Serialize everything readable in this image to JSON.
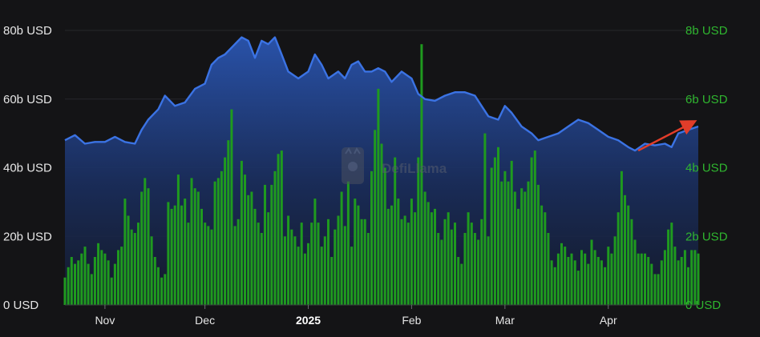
{
  "colors": {
    "background": "#141416",
    "tvl_line": "#3b73e4",
    "tvl_fill": "#1e3a78",
    "volume_bars": "#1f9a1f",
    "right_axis": "#2fb52f",
    "trend_arrow": "#e23d2a",
    "gridline": "#26272b"
  },
  "watermark": {
    "text": "DefiLlama",
    "icon": "llama-logo-icon"
  },
  "chart_data": {
    "type": "line+bar",
    "x_axis": {
      "type": "date",
      "range": [
        "2024-10-20",
        "2025-04-28"
      ],
      "tick_labels": [
        {
          "date": "2024-11-01",
          "label": "Nov",
          "bold": false
        },
        {
          "date": "2024-12-01",
          "label": "Dec",
          "bold": false
        },
        {
          "date": "2025-01-01",
          "label": "2025",
          "bold": true
        },
        {
          "date": "2025-02-01",
          "label": "Feb",
          "bold": false
        },
        {
          "date": "2025-03-01",
          "label": "Mar",
          "bold": false
        },
        {
          "date": "2025-04-01",
          "label": "Apr",
          "bold": false
        }
      ]
    },
    "y_left": {
      "unit": "USD",
      "range": [
        0,
        80000000000
      ],
      "tick_labels": [
        "0 USD",
        "20b USD",
        "40b USD",
        "60b USD",
        "80b USD"
      ]
    },
    "y_right": {
      "unit": "USD",
      "range": [
        0,
        8000000000
      ],
      "tick_labels": [
        "0 USD",
        "2b USD",
        "4b USD",
        "6b USD",
        "8b USD"
      ]
    },
    "grid": "horizontal",
    "legend": "none",
    "series": [
      {
        "type": "area",
        "axis": "left",
        "color": "#3b73e4",
        "points": [
          [
            "2024-10-20",
            48
          ],
          [
            "2024-10-23",
            49.5
          ],
          [
            "2024-10-26",
            47
          ],
          [
            "2024-10-29",
            47.5
          ],
          [
            "2024-11-01",
            47.5
          ],
          [
            "2024-11-04",
            49
          ],
          [
            "2024-11-07",
            47.5
          ],
          [
            "2024-11-10",
            47
          ],
          [
            "2024-11-12",
            51
          ],
          [
            "2024-11-14",
            54
          ],
          [
            "2024-11-17",
            57
          ],
          [
            "2024-11-19",
            61
          ],
          [
            "2024-11-22",
            58
          ],
          [
            "2024-11-25",
            59
          ],
          [
            "2024-11-28",
            63
          ],
          [
            "2024-12-01",
            64.5
          ],
          [
            "2024-12-03",
            70
          ],
          [
            "2024-12-05",
            72
          ],
          [
            "2024-12-07",
            73
          ],
          [
            "2024-12-09",
            75
          ],
          [
            "2024-12-11",
            77
          ],
          [
            "2024-12-12",
            78
          ],
          [
            "2024-12-14",
            77
          ],
          [
            "2024-12-16",
            72
          ],
          [
            "2024-12-18",
            77
          ],
          [
            "2024-12-20",
            76
          ],
          [
            "2024-12-22",
            78
          ],
          [
            "2024-12-24",
            73
          ],
          [
            "2024-12-26",
            68
          ],
          [
            "2024-12-29",
            66
          ],
          [
            "2025-01-01",
            68
          ],
          [
            "2025-01-03",
            73
          ],
          [
            "2025-01-05",
            70
          ],
          [
            "2025-01-07",
            66
          ],
          [
            "2025-01-10",
            68
          ],
          [
            "2025-01-12",
            66
          ],
          [
            "2025-01-14",
            70
          ],
          [
            "2025-01-16",
            71
          ],
          [
            "2025-01-18",
            68
          ],
          [
            "2025-01-20",
            68
          ],
          [
            "2025-01-22",
            69
          ],
          [
            "2025-01-24",
            68
          ],
          [
            "2025-01-26",
            65
          ],
          [
            "2025-01-29",
            68
          ],
          [
            "2025-02-01",
            66
          ],
          [
            "2025-02-03",
            61.5
          ],
          [
            "2025-02-05",
            60
          ],
          [
            "2025-02-08",
            59.5
          ],
          [
            "2025-02-11",
            61
          ],
          [
            "2025-02-14",
            62
          ],
          [
            "2025-02-17",
            62
          ],
          [
            "2025-02-20",
            61
          ],
          [
            "2025-02-22",
            58
          ],
          [
            "2025-02-24",
            55
          ],
          [
            "2025-02-27",
            54
          ],
          [
            "2025-03-01",
            58
          ],
          [
            "2025-03-03",
            56
          ],
          [
            "2025-03-06",
            52
          ],
          [
            "2025-03-09",
            50
          ],
          [
            "2025-03-11",
            48
          ],
          [
            "2025-03-14",
            49
          ],
          [
            "2025-03-17",
            50
          ],
          [
            "2025-03-20",
            52
          ],
          [
            "2025-03-23",
            54
          ],
          [
            "2025-03-26",
            53
          ],
          [
            "2025-03-29",
            51
          ],
          [
            "2025-04-01",
            49
          ],
          [
            "2025-04-04",
            48
          ],
          [
            "2025-04-07",
            46
          ],
          [
            "2025-04-09",
            45
          ],
          [
            "2025-04-12",
            47
          ],
          [
            "2025-04-15",
            46.5
          ],
          [
            "2025-04-18",
            47
          ],
          [
            "2025-04-20",
            46
          ],
          [
            "2025-04-22",
            50
          ],
          [
            "2025-04-25",
            51
          ],
          [
            "2025-04-28",
            52
          ]
        ]
      },
      {
        "type": "bar",
        "axis": "right",
        "color": "#1f9a1f",
        "points": [
          [
            "2024-10-20",
            0.8
          ],
          [
            "2024-10-21",
            1.1
          ],
          [
            "2024-10-22",
            1.4
          ],
          [
            "2024-10-23",
            1.2
          ],
          [
            "2024-10-24",
            1.3
          ],
          [
            "2024-10-25",
            1.5
          ],
          [
            "2024-10-26",
            1.7
          ],
          [
            "2024-10-27",
            1.2
          ],
          [
            "2024-10-28",
            0.9
          ],
          [
            "2024-10-29",
            1.4
          ],
          [
            "2024-10-30",
            1.8
          ],
          [
            "2024-10-31",
            1.6
          ],
          [
            "2024-11-01",
            1.5
          ],
          [
            "2024-11-02",
            1.3
          ],
          [
            "2024-11-03",
            0.8
          ],
          [
            "2024-11-04",
            1.2
          ],
          [
            "2024-11-05",
            1.6
          ],
          [
            "2024-11-06",
            1.7
          ],
          [
            "2024-11-07",
            3.1
          ],
          [
            "2024-11-08",
            2.6
          ],
          [
            "2024-11-09",
            2.2
          ],
          [
            "2024-11-10",
            2.1
          ],
          [
            "2024-11-11",
            2.4
          ],
          [
            "2024-11-12",
            3.3
          ],
          [
            "2024-11-13",
            3.7
          ],
          [
            "2024-11-14",
            3.4
          ],
          [
            "2024-11-15",
            2.0
          ],
          [
            "2024-11-16",
            1.4
          ],
          [
            "2024-11-17",
            1.1
          ],
          [
            "2024-11-18",
            0.8
          ],
          [
            "2024-11-19",
            0.9
          ],
          [
            "2024-11-20",
            3.0
          ],
          [
            "2024-11-21",
            2.8
          ],
          [
            "2024-11-22",
            2.9
          ],
          [
            "2024-11-23",
            3.8
          ],
          [
            "2024-11-24",
            2.9
          ],
          [
            "2024-11-25",
            3.1
          ],
          [
            "2024-11-26",
            2.4
          ],
          [
            "2024-11-27",
            3.7
          ],
          [
            "2024-11-28",
            3.4
          ],
          [
            "2024-11-29",
            3.3
          ],
          [
            "2024-11-30",
            2.8
          ],
          [
            "2024-12-01",
            2.4
          ],
          [
            "2024-12-02",
            2.3
          ],
          [
            "2024-12-03",
            2.2
          ],
          [
            "2024-12-04",
            3.6
          ],
          [
            "2024-12-05",
            3.7
          ],
          [
            "2024-12-06",
            3.9
          ],
          [
            "2024-12-07",
            4.3
          ],
          [
            "2024-12-08",
            4.8
          ],
          [
            "2024-12-09",
            5.7
          ],
          [
            "2024-12-10",
            2.3
          ],
          [
            "2024-12-11",
            2.5
          ],
          [
            "2024-12-12",
            4.2
          ],
          [
            "2024-12-13",
            3.8
          ],
          [
            "2024-12-14",
            3.2
          ],
          [
            "2024-12-15",
            3.3
          ],
          [
            "2024-12-16",
            2.8
          ],
          [
            "2024-12-17",
            2.4
          ],
          [
            "2024-12-18",
            2.1
          ],
          [
            "2024-12-19",
            3.5
          ],
          [
            "2024-12-20",
            2.7
          ],
          [
            "2024-12-21",
            3.5
          ],
          [
            "2024-12-22",
            3.9
          ],
          [
            "2024-12-23",
            4.4
          ],
          [
            "2024-12-24",
            4.5
          ],
          [
            "2024-12-25",
            2.0
          ],
          [
            "2024-12-26",
            2.6
          ],
          [
            "2024-12-27",
            2.2
          ],
          [
            "2024-12-28",
            2.0
          ],
          [
            "2024-12-29",
            1.7
          ],
          [
            "2024-12-30",
            2.4
          ],
          [
            "2024-12-31",
            1.5
          ],
          [
            "2025-01-01",
            1.8
          ],
          [
            "2025-01-02",
            2.4
          ],
          [
            "2025-01-03",
            3.1
          ],
          [
            "2025-01-04",
            2.4
          ],
          [
            "2025-01-05",
            1.7
          ],
          [
            "2025-01-06",
            2.0
          ],
          [
            "2025-01-07",
            2.5
          ],
          [
            "2025-01-08",
            1.4
          ],
          [
            "2025-01-09",
            2.2
          ],
          [
            "2025-01-10",
            2.6
          ],
          [
            "2025-01-11",
            3.3
          ],
          [
            "2025-01-12",
            2.3
          ],
          [
            "2025-01-13",
            3.6
          ],
          [
            "2025-01-14",
            1.7
          ],
          [
            "2025-01-15",
            3.1
          ],
          [
            "2025-01-16",
            2.9
          ],
          [
            "2025-01-17",
            2.5
          ],
          [
            "2025-01-18",
            2.5
          ],
          [
            "2025-01-19",
            2.1
          ],
          [
            "2025-01-20",
            3.9
          ],
          [
            "2025-01-21",
            5.1
          ],
          [
            "2025-01-22",
            6.3
          ],
          [
            "2025-01-23",
            4.7
          ],
          [
            "2025-01-24",
            4.0
          ],
          [
            "2025-01-25",
            2.8
          ],
          [
            "2025-01-26",
            2.9
          ],
          [
            "2025-01-27",
            4.3
          ],
          [
            "2025-01-28",
            3.1
          ],
          [
            "2025-01-29",
            2.5
          ],
          [
            "2025-01-30",
            2.6
          ],
          [
            "2025-01-31",
            2.4
          ],
          [
            "2025-02-01",
            3.1
          ],
          [
            "2025-02-02",
            2.7
          ],
          [
            "2025-02-03",
            4.3
          ],
          [
            "2025-02-04",
            7.6
          ],
          [
            "2025-02-05",
            3.3
          ],
          [
            "2025-02-06",
            3.0
          ],
          [
            "2025-02-07",
            2.7
          ],
          [
            "2025-02-08",
            2.8
          ],
          [
            "2025-02-09",
            2.1
          ],
          [
            "2025-02-10",
            1.9
          ],
          [
            "2025-02-11",
            2.5
          ],
          [
            "2025-02-12",
            2.7
          ],
          [
            "2025-02-13",
            2.2
          ],
          [
            "2025-02-14",
            2.4
          ],
          [
            "2025-02-15",
            1.4
          ],
          [
            "2025-02-16",
            1.2
          ],
          [
            "2025-02-17",
            2.1
          ],
          [
            "2025-02-18",
            2.7
          ],
          [
            "2025-02-19",
            2.4
          ],
          [
            "2025-02-20",
            2.1
          ],
          [
            "2025-02-21",
            1.9
          ],
          [
            "2025-02-22",
            2.5
          ],
          [
            "2025-02-23",
            5.0
          ],
          [
            "2025-02-24",
            2.0
          ],
          [
            "2025-02-25",
            4.0
          ],
          [
            "2025-02-26",
            4.3
          ],
          [
            "2025-02-27",
            4.6
          ],
          [
            "2025-02-28",
            3.6
          ],
          [
            "2025-03-01",
            3.9
          ],
          [
            "2025-03-02",
            3.6
          ],
          [
            "2025-03-03",
            4.2
          ],
          [
            "2025-03-04",
            3.3
          ],
          [
            "2025-03-05",
            2.8
          ],
          [
            "2025-03-06",
            3.4
          ],
          [
            "2025-03-07",
            3.3
          ],
          [
            "2025-03-08",
            3.6
          ],
          [
            "2025-03-09",
            4.3
          ],
          [
            "2025-03-10",
            4.5
          ],
          [
            "2025-03-11",
            3.5
          ],
          [
            "2025-03-12",
            2.9
          ],
          [
            "2025-03-13",
            2.7
          ],
          [
            "2025-03-14",
            2.1
          ],
          [
            "2025-03-15",
            1.3
          ],
          [
            "2025-03-16",
            1.1
          ],
          [
            "2025-03-17",
            1.5
          ],
          [
            "2025-03-18",
            1.8
          ],
          [
            "2025-03-19",
            1.7
          ],
          [
            "2025-03-20",
            1.4
          ],
          [
            "2025-03-21",
            1.5
          ],
          [
            "2025-03-22",
            1.3
          ],
          [
            "2025-03-23",
            1.0
          ],
          [
            "2025-03-24",
            1.6
          ],
          [
            "2025-03-25",
            1.5
          ],
          [
            "2025-03-26",
            1.2
          ],
          [
            "2025-03-27",
            1.9
          ],
          [
            "2025-03-28",
            1.6
          ],
          [
            "2025-03-29",
            1.4
          ],
          [
            "2025-03-30",
            1.3
          ],
          [
            "2025-03-31",
            1.1
          ],
          [
            "2025-04-01",
            1.7
          ],
          [
            "2025-04-02",
            1.5
          ],
          [
            "2025-04-03",
            2.0
          ],
          [
            "2025-04-04",
            2.7
          ],
          [
            "2025-04-05",
            3.9
          ],
          [
            "2025-04-06",
            3.2
          ],
          [
            "2025-04-07",
            2.9
          ],
          [
            "2025-04-08",
            2.5
          ],
          [
            "2025-04-09",
            1.9
          ],
          [
            "2025-04-10",
            1.5
          ],
          [
            "2025-04-11",
            1.5
          ],
          [
            "2025-04-12",
            1.5
          ],
          [
            "2025-04-13",
            1.4
          ],
          [
            "2025-04-14",
            1.2
          ],
          [
            "2025-04-15",
            0.9
          ],
          [
            "2025-04-16",
            0.9
          ],
          [
            "2025-04-17",
            1.3
          ],
          [
            "2025-04-18",
            1.6
          ],
          [
            "2025-04-19",
            2.2
          ],
          [
            "2025-04-20",
            2.4
          ],
          [
            "2025-04-21",
            1.7
          ],
          [
            "2025-04-22",
            1.3
          ],
          [
            "2025-04-23",
            1.4
          ],
          [
            "2025-04-24",
            1.6
          ],
          [
            "2025-04-25",
            1.1
          ],
          [
            "2025-04-26",
            1.6
          ],
          [
            "2025-04-27",
            1.6
          ],
          [
            "2025-04-28",
            1.5
          ]
        ]
      }
    ],
    "annotations": [
      {
        "type": "arrow",
        "color": "#e23d2a",
        "from": [
          "2025-04-10",
          45
        ],
        "to": [
          "2025-04-28",
          54
        ]
      }
    ]
  }
}
